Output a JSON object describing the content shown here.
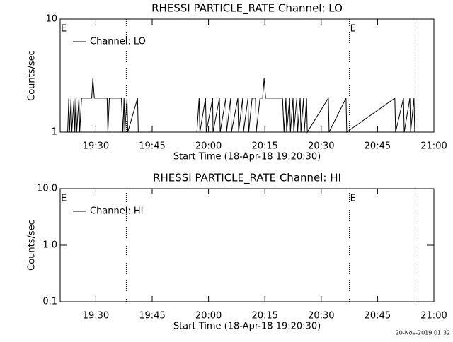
{
  "chart_data": [
    {
      "type": "line",
      "title": "RHESSI PARTICLE_RATE Channel: LO",
      "x_label": "Start Time (18-Apr-18 19:20:30)",
      "y_label": "Counts/sec",
      "log_y": true,
      "legend": "upper left",
      "xlim": [
        20.5,
        120
      ],
      "xticks": [
        {
          "value": 30,
          "label": "19:30"
        },
        {
          "value": 45,
          "label": "19:45"
        },
        {
          "value": 60,
          "label": "20:00"
        },
        {
          "value": 75,
          "label": "20:15"
        },
        {
          "value": 90,
          "label": "20:30"
        },
        {
          "value": 105,
          "label": "20:45"
        },
        {
          "value": 120,
          "label": "21:00"
        }
      ],
      "ylim": [
        1,
        10
      ],
      "yticks": [
        1,
        10
      ],
      "vlines": [
        38.1,
        97.5,
        115
      ],
      "flags": [
        {
          "x": 20.5,
          "label": "E"
        },
        {
          "x": 97.5,
          "label": "E"
        }
      ],
      "series": [
        {
          "name": "Channel: LO",
          "color": "#000000",
          "x": [
            22.5,
            22.8,
            23.0,
            23.4,
            23.6,
            24.2,
            24.4,
            24.7,
            24.9,
            25.5,
            25.7,
            26.2,
            28.9,
            29.2,
            29.6,
            33.0,
            33.2,
            33.6,
            36.8,
            37.2,
            37.5,
            37.7,
            38.3,
            38.5,
            41.1,
            41.3,
            56.9,
            57.5,
            57.7,
            59.2,
            59.4,
            61.1,
            61.2,
            62.9,
            63.1,
            64.6,
            64.8,
            65.9,
            66.1,
            67.8,
            68.0,
            69.1,
            69.3,
            70.5,
            70.7,
            71.6,
            72.5,
            72.7,
            73.7,
            74.4,
            74.8,
            75.2,
            79.7,
            80.1,
            80.6,
            80.8,
            81.6,
            81.8,
            82.5,
            82.7,
            83.5,
            83.7,
            84.4,
            84.6,
            85.3,
            85.5,
            86.1,
            86.3,
            91.9,
            92.1,
            96.6,
            96.8,
            109.6,
            109.8,
            111.9,
            112.1,
            113.6,
            113.8,
            114.7,
            114.9
          ],
          "values": [
            1,
            2,
            1,
            2,
            1,
            2,
            1,
            2,
            1,
            2,
            1,
            2,
            2,
            3,
            2,
            2,
            1,
            2,
            2,
            1,
            2,
            1,
            2,
            1,
            2,
            1,
            1,
            2,
            1,
            2,
            1,
            2,
            1,
            2,
            1,
            2,
            1,
            2,
            1,
            2,
            1,
            2,
            1,
            2,
            1,
            2,
            2,
            1,
            2,
            2,
            3,
            2,
            2,
            1,
            2,
            1,
            2,
            1,
            2,
            1,
            2,
            1,
            2,
            1,
            2,
            1,
            2,
            1,
            2,
            1,
            2,
            1,
            2,
            1,
            2,
            1,
            2,
            1,
            2,
            1
          ]
        }
      ]
    },
    {
      "type": "line",
      "title": "RHESSI PARTICLE_RATE Channel: HI",
      "x_label": "Start Time (18-Apr-18 19:20:30)",
      "y_label": "Counts/sec",
      "log_y": true,
      "legend": "upper left",
      "xlim": [
        20.5,
        120
      ],
      "xticks": [
        {
          "value": 30,
          "label": "19:30"
        },
        {
          "value": 45,
          "label": "19:45"
        },
        {
          "value": 60,
          "label": "20:00"
        },
        {
          "value": 75,
          "label": "20:15"
        },
        {
          "value": 90,
          "label": "20:30"
        },
        {
          "value": 105,
          "label": "20:45"
        },
        {
          "value": 120,
          "label": "21:00"
        }
      ],
      "ylim": [
        0.1,
        10
      ],
      "yticks": [
        0.1,
        {
          "value": 1,
          "label": "1.0"
        },
        {
          "value": 10,
          "label": "10.0"
        }
      ],
      "vlines": [
        38.1,
        97.5,
        115
      ],
      "flags": [
        {
          "x": 20.5,
          "label": "E"
        },
        {
          "x": 97.5,
          "label": "E"
        }
      ],
      "series": [
        {
          "name": "Channel: HI",
          "color": "#000000",
          "x": [],
          "values": []
        }
      ]
    }
  ],
  "footer": "20-Nov-2019 01:32"
}
